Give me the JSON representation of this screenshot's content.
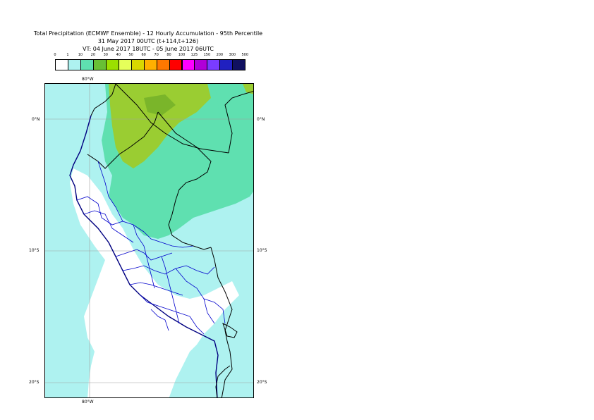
{
  "header": {
    "title": "Total Precipitation (ECMWF Ensemble) - 12 Hourly Accumulation - 95th Percentile",
    "base_time": "31 May 2017 00UTC (t+114,t+126)",
    "valid_time": "VT: 04 June 2017 18UTC - 05 June 2017 06UTC"
  },
  "legend": {
    "ticks": [
      "0",
      "1",
      "10",
      "20",
      "30",
      "40",
      "50",
      "60",
      "70",
      "80",
      "100",
      "125",
      "150",
      "200",
      "300",
      "500"
    ],
    "colors": [
      "#ffffff",
      "#aef2f0",
      "#5fe0b0",
      "#68c035",
      "#9be000",
      "#e6ff5a",
      "#d8d800",
      "#ffb000",
      "#ff7800",
      "#ff0000",
      "#ff00ff",
      "#b000d8",
      "#7a3cff",
      "#2020c0",
      "#101060"
    ]
  },
  "axes": {
    "lon_top": "80°W",
    "lon_bottom": "80°W",
    "lat_labels_left": [
      "0°N",
      "10°S",
      "20°S"
    ],
    "lat_labels_right": [
      "0°N",
      "10°S",
      "20°S"
    ]
  },
  "map": {
    "region": "Peru",
    "colors": {
      "land_background": "#ffffff",
      "light_precip": "#aef2f0",
      "moderate_precip": "#5fe0b0",
      "heavy_precip": "#9acd32",
      "coastline": "#000080",
      "country_border": "#000000",
      "region_border": "#0000cc",
      "graticule": "#a0a0a0"
    }
  }
}
